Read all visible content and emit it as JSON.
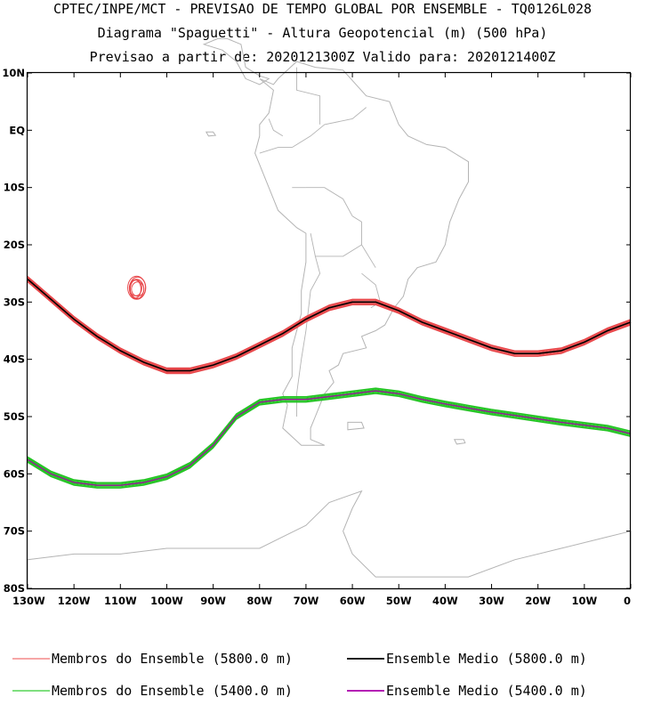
{
  "title": {
    "line1": "CPTEC/INPE/MCT - PREVISAO DE TEMPO GLOBAL POR ENSEMBLE - TQ0126L028",
    "line2": "Diagrama \"Spaguetti\" - Altura Geopotencial (m) (500 hPa)",
    "line3": "Previsao a partir de: 2020121300Z  Valido para: 2020121400Z"
  },
  "axes": {
    "lon_ticks": [
      "130W",
      "120W",
      "110W",
      "100W",
      "90W",
      "80W",
      "70W",
      "60W",
      "50W",
      "40W",
      "30W",
      "20W",
      "10W",
      "0"
    ],
    "lat_ticks": [
      "10N",
      "EQ",
      "10S",
      "20S",
      "30S",
      "40S",
      "50S",
      "60S",
      "70S",
      "80S"
    ]
  },
  "colors": {
    "member_5800": "#e8474a",
    "mean_5800": "#000000",
    "member_5400": "#22c422",
    "mean_5400": "#9b189b",
    "coast": "#b4b4b4"
  },
  "legend": {
    "items": [
      {
        "label": "Membros do Ensemble (5800.0 m)",
        "color": "#f07070"
      },
      {
        "label": "Ensemble Medio (5800.0 m)",
        "color": "#000000"
      },
      {
        "label": "Membros do Ensemble (5400.0 m)",
        "color": "#33cc33"
      },
      {
        "label": "Ensemble Medio (5400.0 m)",
        "color": "#aa00aa"
      }
    ]
  },
  "chart_data": {
    "type": "line",
    "xlabel": "",
    "ylabel": "",
    "xlim": [
      -130,
      0
    ],
    "ylim": [
      -80,
      10
    ],
    "series": [
      {
        "name": "Ensemble Medio (5800.0 m)",
        "x": [
          -130,
          -125,
          -120,
          -115,
          -110,
          -105,
          -100,
          -95,
          -90,
          -85,
          -80,
          -75,
          -70,
          -65,
          -60,
          -55,
          -50,
          -45,
          -40,
          -35,
          -30,
          -25,
          -20,
          -15,
          -10,
          -5,
          0
        ],
        "y": [
          -26,
          -29.5,
          -33,
          -36,
          -38.5,
          -40.5,
          -42,
          -42,
          -41,
          -39.5,
          -37.5,
          -35.5,
          -33,
          -31,
          -30,
          -30,
          -31.5,
          -33.5,
          -35,
          -36.5,
          -38,
          -39,
          -39,
          -38.5,
          -37,
          -35,
          -33.5
        ]
      },
      {
        "name": "Ensemble Medio (5400.0 m)",
        "x": [
          -130,
          -125,
          -120,
          -115,
          -110,
          -105,
          -100,
          -95,
          -90,
          -85,
          -80,
          -75,
          -70,
          -65,
          -60,
          -55,
          -50,
          -45,
          -40,
          -35,
          -30,
          -25,
          -20,
          -15,
          -10,
          -5,
          0
        ],
        "y": [
          -57.5,
          -60,
          -61.5,
          -62,
          -62,
          -61.5,
          -60.5,
          -58.5,
          -55,
          -50,
          -47.5,
          -47,
          -47,
          -46.5,
          -46,
          -45.5,
          -46,
          -47,
          -47.8,
          -48.5,
          -49.2,
          -49.8,
          -50.4,
          -51,
          -51.5,
          -52,
          -53
        ]
      }
    ],
    "member_clusters": [
      {
        "contour": "5800.0 m",
        "lon": -106.5,
        "lat": -27.5
      }
    ]
  }
}
